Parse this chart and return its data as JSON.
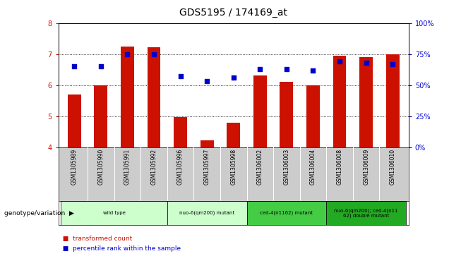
{
  "title": "GDS5195 / 174169_at",
  "samples": [
    "GSM1305989",
    "GSM1305990",
    "GSM1305991",
    "GSM1305992",
    "GSM1305996",
    "GSM1305997",
    "GSM1305998",
    "GSM1306002",
    "GSM1306003",
    "GSM1306004",
    "GSM1306008",
    "GSM1306009",
    "GSM1306010"
  ],
  "bar_values": [
    5.7,
    6.0,
    7.25,
    7.22,
    4.98,
    4.22,
    4.78,
    6.3,
    6.1,
    6.0,
    6.95,
    6.9,
    7.0
  ],
  "bar_bottom": 4.0,
  "percentile_values": [
    65,
    65,
    75,
    75,
    57,
    53,
    56,
    63,
    63,
    62,
    69,
    68,
    67
  ],
  "ylim_left": [
    4,
    8
  ],
  "ylim_right": [
    0,
    100
  ],
  "yticks_left": [
    4,
    5,
    6,
    7,
    8
  ],
  "yticks_right": [
    0,
    25,
    50,
    75,
    100
  ],
  "bar_color": "#cc1100",
  "dot_color": "#0000cc",
  "title_fontsize": 10,
  "groups": [
    {
      "label": "wild type",
      "start": 0,
      "end": 3,
      "color": "#ccffcc"
    },
    {
      "label": "nuo-6(qm200) mutant",
      "start": 4,
      "end": 6,
      "color": "#ccffcc"
    },
    {
      "label": "ced-4(n1162) mutant",
      "start": 7,
      "end": 9,
      "color": "#44cc44"
    },
    {
      "label": "nuo-6(qm200); ced-4(n11\n62) double mutant",
      "start": 10,
      "end": 12,
      "color": "#22aa22"
    }
  ],
  "genotype_label": "genotype/variation",
  "legend_bar_label": "transformed count",
  "legend_dot_label": "percentile rank within the sample",
  "sample_box_color": "#cccccc",
  "plot_bg_color": "#ffffff"
}
